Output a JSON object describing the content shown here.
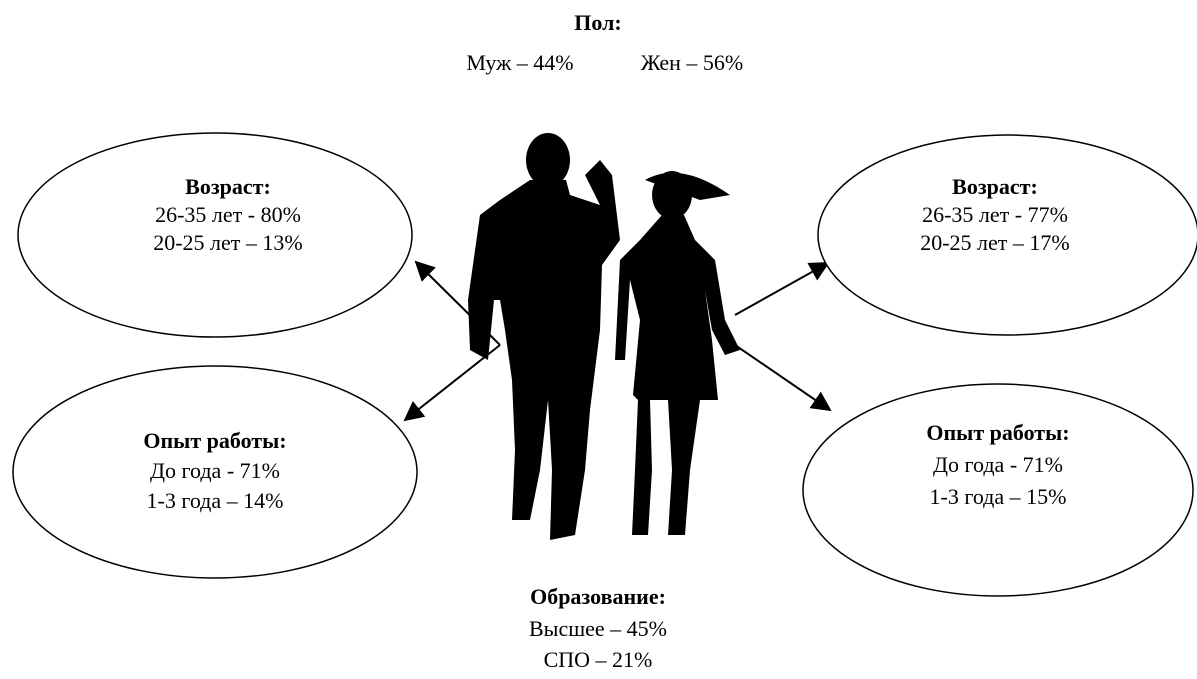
{
  "gender": {
    "title": "Пол:",
    "items": [
      "Муж – 44%",
      "Жен – 56%"
    ]
  },
  "men_age": {
    "title": "Возраст:",
    "lines": [
      "26-35 лет - 80%",
      "20-25 лет – 13%"
    ]
  },
  "men_experience": {
    "title": "Опыт работы:",
    "lines": [
      "До года - 71%",
      "1-3 года – 14%"
    ]
  },
  "women_age": {
    "title": "Возраст:",
    "lines": [
      "26-35 лет - 77%",
      "20-25 лет – 17%"
    ]
  },
  "women_experience": {
    "title": "Опыт работы:",
    "lines": [
      "До года - 71%",
      "1-3 года – 15%"
    ]
  },
  "education": {
    "title": "Образование:",
    "lines": [
      "Высшее – 45%",
      "СПО – 21%"
    ]
  }
}
